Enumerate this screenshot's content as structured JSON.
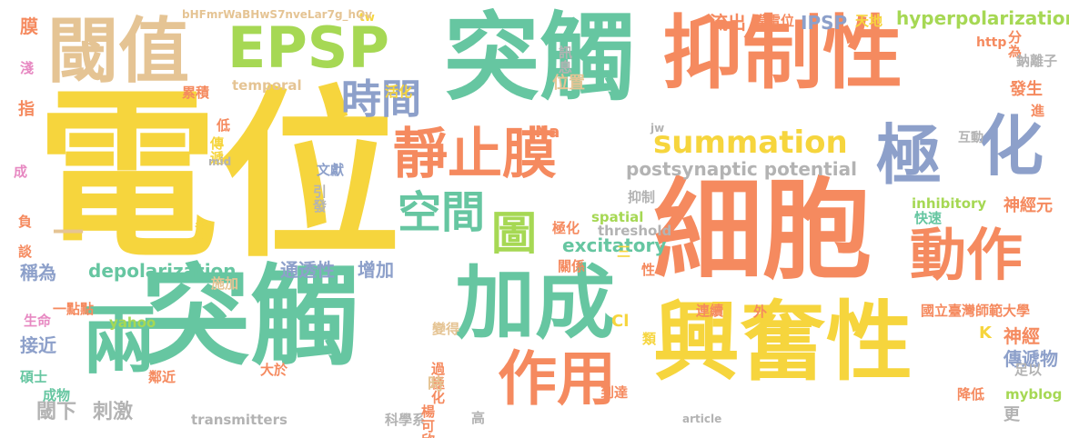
{
  "colors": {
    "yellow": "#f6d53d",
    "green": "#66c6a1",
    "orange": "#f58a5f",
    "blue": "#8da0ca",
    "tan": "#e5c494",
    "lime": "#a6d854",
    "pink": "#e789c2",
    "gray": "#b3b3b3",
    "bg": "#ffffff"
  },
  "words": [
    "電位",
    "細胞",
    "突觸",
    "突觸",
    "抑制性",
    "興奮性",
    "閾值",
    "EPSP",
    "加成",
    "靜止膜",
    "極",
    "化",
    "動作",
    "時間",
    "圖",
    "空間",
    "兩",
    "作用",
    "summation",
    "postsynaptic potential",
    "hyperpolarization",
    "depolarization",
    "excitatory",
    "通透性",
    "增加",
    "IPSP",
    "流出",
    "膜電位",
    "天地",
    "位置",
    "閾下",
    "刺激",
    "傳遞物",
    "神經",
    "神經元",
    "inhibitory",
    "快速",
    "threshold",
    "spatial",
    "抑制",
    "極化",
    "關係",
    "temporal",
    "累積",
    "活化",
    "訊息",
    "傳遞",
    "一",
    "一點點",
    "參考",
    "引發",
    "文獻",
    "施加",
    "接近",
    "稱為",
    "碩士",
    "成物",
    "生命",
    "鄰近",
    "大於",
    "過極化",
    "時",
    "高",
    "科學系",
    "楊可欣",
    "到達",
    "連續",
    "外",
    "國立臺灣師範大學",
    "足以",
    "降低",
    "myblog",
    "article",
    "transmitters",
    "yahoo",
    "Cl",
    "K",
    "Na",
    "jw",
    "http",
    "分為",
    "鈉離子",
    "發生",
    "進",
    "互動",
    "mid",
    "tw",
    "bHFmrWaBHwS7nveLar7g_hQv",
    "指",
    "膜",
    "淺",
    "成",
    "負",
    "談",
    "低",
    "三",
    "性",
    "類",
    "變得",
    "更"
  ]
}
